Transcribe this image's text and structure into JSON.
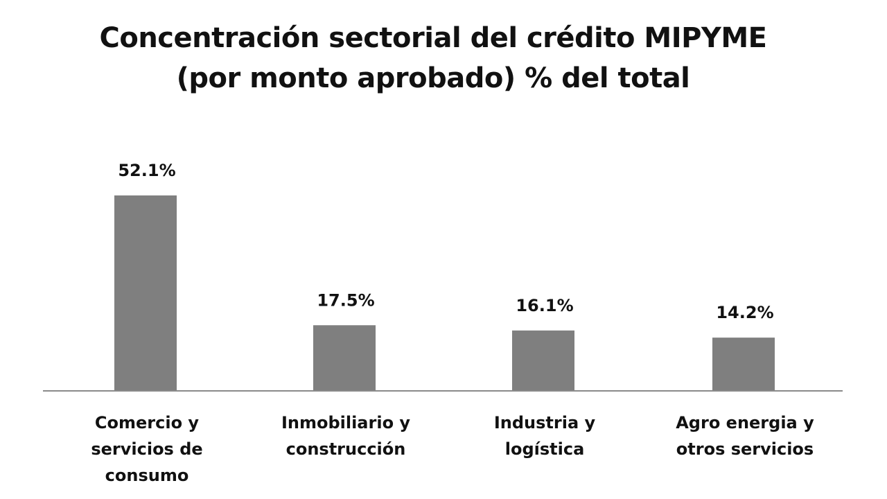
{
  "chart_data": {
    "type": "bar",
    "title_lines": [
      "Concentración sectorial del crédito MIPYME",
      "(por monto aprobado) % del total"
    ],
    "categories": [
      [
        "Comercio y",
        "servicios de",
        "consumo"
      ],
      [
        "Inmobiliario y",
        "construcción"
      ],
      [
        "Industria y",
        "logística"
      ],
      [
        "Agro energia y",
        "otros servicios"
      ]
    ],
    "values": [
      52.1,
      17.5,
      16.1,
      14.2
    ],
    "value_labels": [
      "52.1%",
      "17.5%",
      "16.1%",
      "14.2%"
    ],
    "xlabel": "",
    "ylabel": "",
    "ylim": [
      0,
      52.1
    ],
    "grid": false,
    "legend": "none",
    "bar_color": "#7f7f7f",
    "axis_color": "#8a8a8a"
  }
}
